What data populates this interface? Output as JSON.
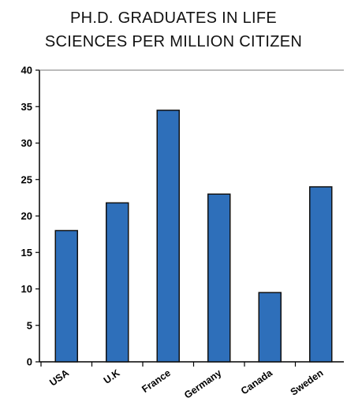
{
  "chart_data": {
    "type": "bar",
    "title_lines": [
      "PH.D. GRADUATES IN LIFE",
      "SCIENCES PER MILLION CITIZEN"
    ],
    "categories": [
      "USA",
      "U.K",
      "France",
      "Germany",
      "Canada",
      "Sweden"
    ],
    "values": [
      18,
      21.8,
      34.5,
      23,
      9.5,
      24
    ],
    "ylim": [
      0,
      40
    ],
    "yticks": [
      0,
      5,
      10,
      15,
      20,
      25,
      30,
      35,
      40
    ],
    "grid": false,
    "bar_color": "#2e6fba",
    "bar_edge_color": "#111111",
    "legend": "none"
  }
}
